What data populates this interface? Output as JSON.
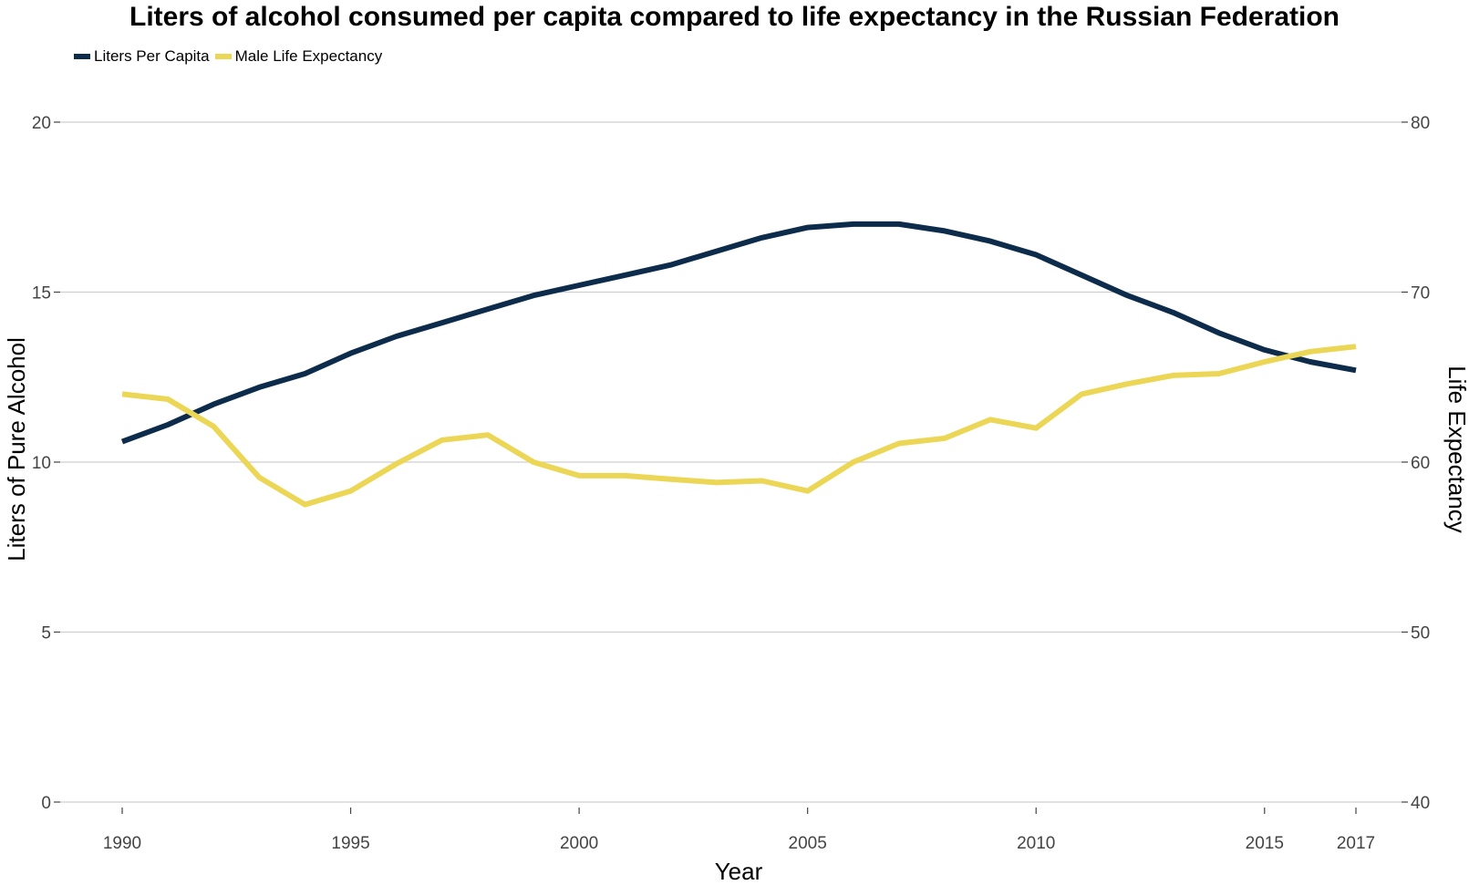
{
  "chart_data": {
    "type": "line",
    "title": "Liters of alcohol consumed per capita compared to life expectancy in the Russian Federation",
    "xlabel": "Year",
    "ylabel": "Liters of Pure Alcohol",
    "ylabel_right": "Life Expectancy",
    "x": [
      1990,
      1991,
      1992,
      1993,
      1994,
      1995,
      1996,
      1997,
      1998,
      1999,
      2000,
      2001,
      2002,
      2003,
      2004,
      2005,
      2006,
      2007,
      2008,
      2009,
      2010,
      2011,
      2012,
      2013,
      2014,
      2015,
      2016,
      2017
    ],
    "xticks": [
      "1990",
      "1995",
      "2000",
      "2005",
      "2010",
      "2015",
      "2017"
    ],
    "ylim": [
      0,
      20
    ],
    "yticks": [
      "0",
      "5",
      "10",
      "15",
      "20"
    ],
    "ylim_right": [
      40,
      80
    ],
    "yticks_right": [
      "40",
      "50",
      "60",
      "70",
      "80"
    ],
    "grid": true,
    "legend_position": "top-left",
    "series": [
      {
        "name": "Liters Per Capita",
        "axis": "left",
        "color": "#0d2b4b",
        "values": [
          10.6,
          11.1,
          11.7,
          12.2,
          12.6,
          13.2,
          13.7,
          14.1,
          14.5,
          14.9,
          15.2,
          15.5,
          15.8,
          16.2,
          16.6,
          16.9,
          17.0,
          17.0,
          16.8,
          16.5,
          16.1,
          15.5,
          14.9,
          14.4,
          13.8,
          13.3,
          12.95,
          12.7
        ]
      },
      {
        "name": "Male Life Expectancy",
        "axis": "right",
        "color": "#ecd656",
        "values": [
          64.0,
          63.7,
          62.1,
          59.1,
          57.5,
          58.3,
          59.9,
          61.3,
          61.6,
          60.0,
          59.2,
          59.2,
          59.0,
          58.8,
          58.9,
          58.3,
          60.0,
          61.1,
          61.4,
          62.5,
          62.0,
          64.0,
          64.6,
          65.1,
          65.2,
          65.9,
          66.5,
          66.8
        ]
      }
    ]
  }
}
